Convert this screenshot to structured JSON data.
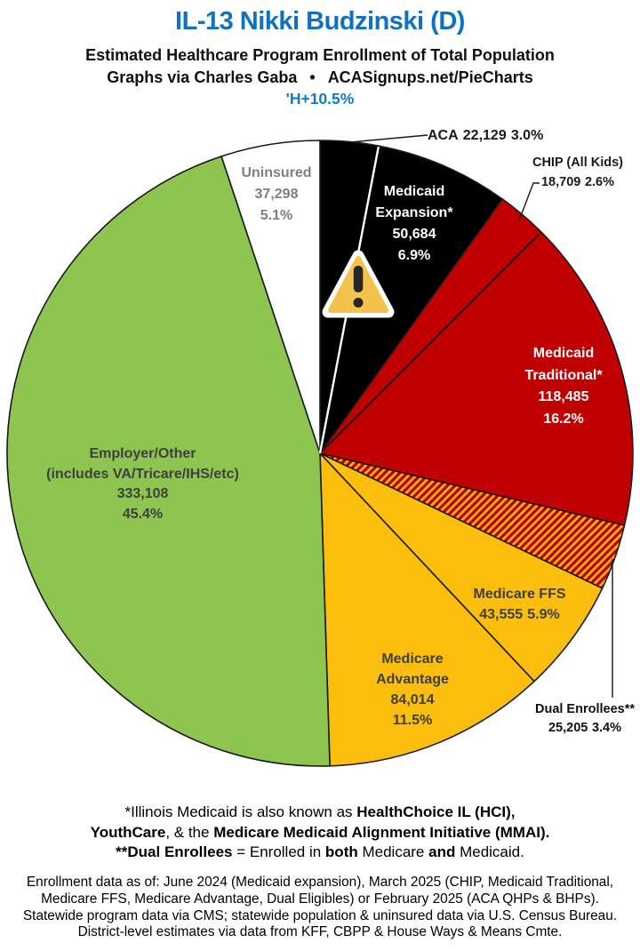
{
  "header": {
    "title": "IL-13 Nikki Budzinski (D)",
    "subtitle": "Estimated Healthcare Program Enrollment of Total Population",
    "credit_left": "Graphs via Charles Gaba",
    "credit_sep": "•",
    "credit_right": "ACASignups.net/PieCharts",
    "swing": "'H+10.5%"
  },
  "colors": {
    "title_blue": "#0e72c0",
    "swing_blue": "#0d7bca",
    "slice_black": "#000000",
    "slice_red": "#c00000",
    "slice_yellow": "#fcbe0d",
    "slice_green": "#8dc550",
    "slice_white": "#ffffff",
    "outline": "#1a1a1a",
    "gray_label": "#7f7f7f",
    "dark_label": "#3f3f3f",
    "warning_fill": "#f3c34c"
  },
  "chart_data": {
    "type": "pie",
    "title": "Estimated Healthcare Program Enrollment of Total Population",
    "units": "people",
    "clockwise_from_top": true,
    "outline_color": "#1a1a1a",
    "hatch_colors": [
      "#c00000",
      "#fcbe0d"
    ],
    "white_divider_between": [
      "aca",
      "medicaid-expansion"
    ],
    "slices": [
      {
        "id": "aca",
        "label": "ACA",
        "value": 22129,
        "value_text": "22,129",
        "pct": 3.0,
        "pct_text": "3.0%",
        "fill": "#000000",
        "label_placement": "outside"
      },
      {
        "id": "medicaid-expansion",
        "label": "Medicaid Expansion*",
        "name_lines": [
          "Medicaid",
          "Expansion*"
        ],
        "value": 50684,
        "value_text": "50,684",
        "pct": 6.9,
        "pct_text": "6.9%",
        "fill": "#000000",
        "label_placement": "inside"
      },
      {
        "id": "chip",
        "label": "CHIP (All Kids)",
        "value": 18709,
        "value_text": "18,709",
        "pct": 2.6,
        "pct_text": "2.6%",
        "fill": "#c00000",
        "label_placement": "outside"
      },
      {
        "id": "medicaid-traditional",
        "label": "Medicaid Traditional*",
        "name_lines": [
          "Medicaid",
          "Traditional*"
        ],
        "value": 118485,
        "value_text": "118,485",
        "pct": 16.2,
        "pct_text": "16.2%",
        "fill": "#c00000",
        "label_placement": "inside"
      },
      {
        "id": "dual-enrollees",
        "label": "Dual Enrollees**",
        "value": 25205,
        "value_text": "25,205",
        "pct": 3.4,
        "pct_text": "3.4%",
        "fill": "hatch",
        "label_placement": "outside"
      },
      {
        "id": "medicare-ffs",
        "label": "Medicare FFS",
        "value": 43555,
        "value_text": "43,555",
        "pct": 5.9,
        "pct_text": "5.9%",
        "fill": "#fcbe0d",
        "label_placement": "inside"
      },
      {
        "id": "medicare-advantage",
        "label": "Medicare Advantage",
        "name_lines": [
          "Medicare",
          "Advantage"
        ],
        "value": 84014,
        "value_text": "84,014",
        "pct": 11.5,
        "pct_text": "11.5%",
        "fill": "#fcbe0d",
        "label_placement": "inside"
      },
      {
        "id": "employer-other",
        "label": "Employer/Other (includes VA/Tricare/IHS/etc)",
        "name_lines": [
          "Employer/Other",
          "(includes VA/Tricare/IHS/etc)"
        ],
        "value": 333108,
        "value_text": "333,108",
        "pct": 45.4,
        "pct_text": "45.4%",
        "fill": "#8dc550",
        "label_placement": "inside"
      },
      {
        "id": "uninsured",
        "label": "Uninsured",
        "value": 37298,
        "value_text": "37,298",
        "pct": 5.1,
        "pct_text": "5.1%",
        "fill": "#ffffff",
        "label_placement": "inside"
      }
    ],
    "annotations": [
      {
        "type": "warning-icon",
        "on_slice": "medicaid-expansion"
      }
    ]
  },
  "footnote1": {
    "lines": [
      [
        {
          "t": "*Illinois Medicaid is also known as ",
          "b": false
        },
        {
          "t": "HealthChoice IL (HCI)",
          "b": true
        },
        {
          "t": ",",
          "b": true
        }
      ],
      [
        {
          "t": "YouthCare",
          "b": true
        },
        {
          "t": ", & the ",
          "b": false
        },
        {
          "t": "Medicare Medicaid Alignment Initiative (MMAI).",
          "b": true
        }
      ],
      [
        {
          "t": "**Dual Enrollees",
          "b": true
        },
        {
          "t": " = Enrolled in ",
          "b": false
        },
        {
          "t": "both",
          "b": true
        },
        {
          "t": " Medicare ",
          "b": false
        },
        {
          "t": "and",
          "b": true
        },
        {
          "t": " Medicaid.",
          "b": false
        }
      ]
    ]
  },
  "footnote2": {
    "lines": [
      "Enrollment data as of: June 2024 (Medicaid expansion), March 2025 (CHIP, Medicaid Traditional,",
      "Medicare FFS, Medicare Advantage, Dual Eligibles) or February 2025 (ACA QHPs & BHPs).",
      "Statewide program data via CMS; statewide population & uninsured data via U.S. Census Bureau.",
      "District-level estimates via data from KFF, CBPP & House Ways & Means Cmte."
    ]
  }
}
